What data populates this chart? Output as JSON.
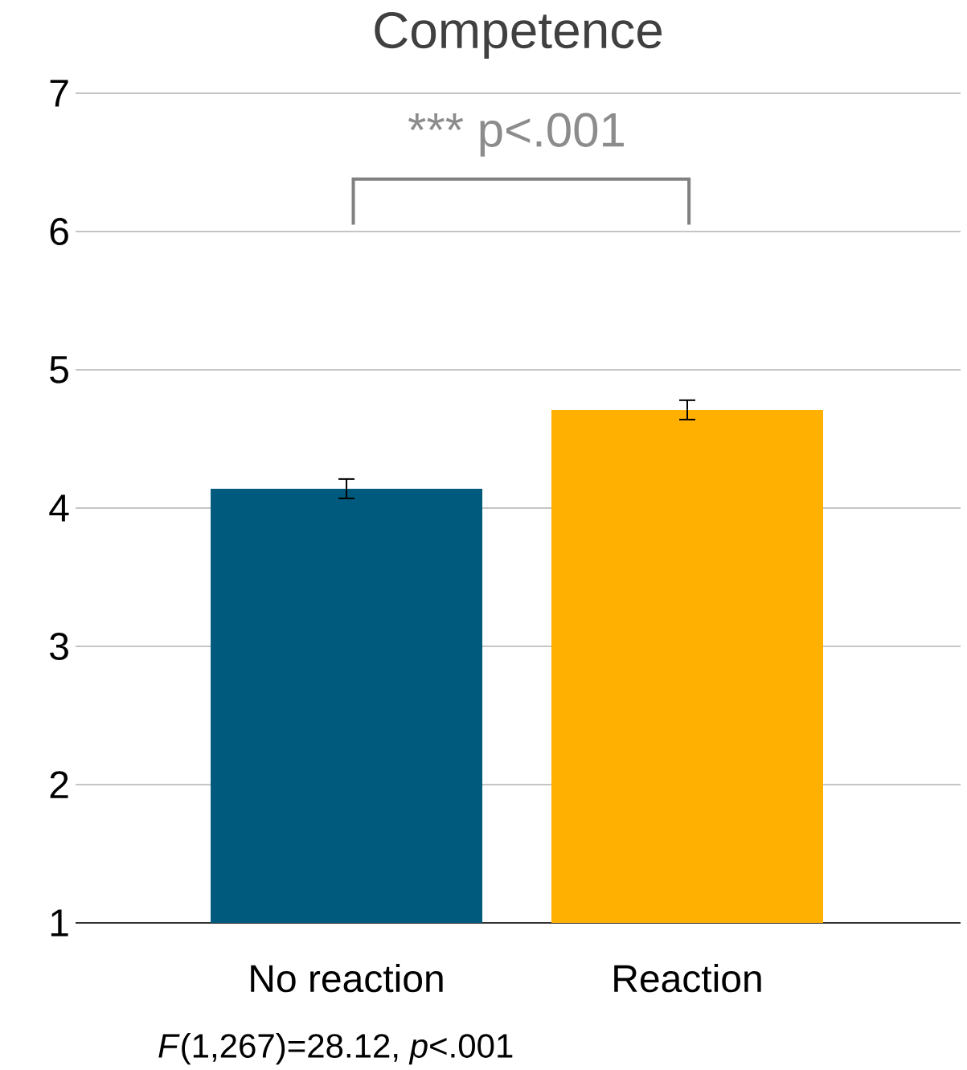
{
  "chart_data": {
    "type": "bar",
    "title": "Competence",
    "categories": [
      "No reaction",
      "Reaction"
    ],
    "values": [
      4.14,
      4.71
    ],
    "colors": [
      "#005a7d",
      "#ffb000"
    ],
    "errors": [
      0.07,
      0.07
    ],
    "ylim": [
      1,
      7
    ],
    "yticks": [
      1,
      2,
      3,
      4,
      5,
      6,
      7
    ],
    "grid": "y",
    "annotations": [
      "*** p<.001",
      "*F*(1,267)=28.12, *p*<.001"
    ]
  }
}
